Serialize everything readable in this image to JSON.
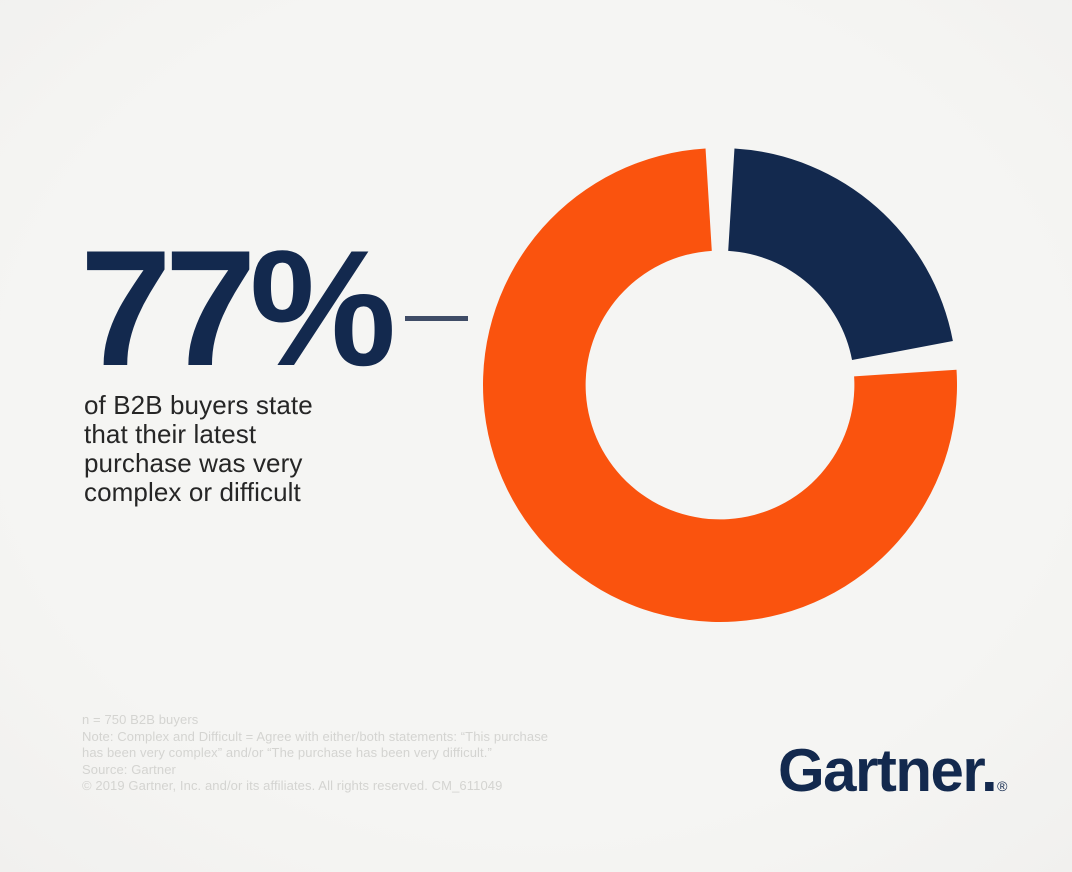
{
  "page": {
    "background": "#f3f3f1"
  },
  "stat": {
    "value": "77%",
    "description_lines": [
      "of B2B buyers state",
      "that their latest",
      "purchase was very",
      "complex or difficult"
    ]
  },
  "chart_data": {
    "type": "pie",
    "subtype": "donut",
    "segments": [
      {
        "value": 23,
        "color": "#13294e"
      },
      {
        "value": 77,
        "color": "#fa530e"
      }
    ],
    "highlight_label": "77%",
    "start_angle_deg": 0,
    "clockwise": true,
    "gap_deg": 7,
    "inner_radius_ratio": 0.567,
    "legend": "none",
    "title": ""
  },
  "footnotes": {
    "lines": [
      "n = 750 B2B buyers",
      "Note: Complex and Difficult = Agree with either/both statements: “This purchase",
      "has been very complex” and/or “The purchase has been very difficult.”",
      "Source: Gartner",
      "© 2019 Gartner, Inc. and/or its affiliates. All rights reserved. CM_611049"
    ]
  },
  "logo": {
    "text": "Gartner",
    "suffix": ".",
    "registered": "®"
  }
}
